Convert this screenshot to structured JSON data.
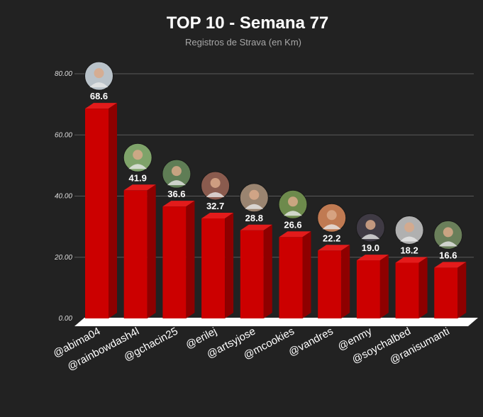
{
  "chart_data": {
    "type": "bar",
    "title": "TOP 10 - Semana 77",
    "subtitle": "Registros de Strava (en Km)",
    "xlabel": "",
    "ylabel": "",
    "categories": [
      "@abima04",
      "@rainbowdash4l",
      "@gchacin25",
      "@erilej",
      "@artsyjose",
      "@mcookies",
      "@vandres",
      "@enmy",
      "@soychalbed",
      "@ranisumanti"
    ],
    "values": [
      68.6,
      41.9,
      36.6,
      32.7,
      28.8,
      26.6,
      22.2,
      19.0,
      18.2,
      16.6
    ],
    "value_labels": [
      "68.6",
      "41.9",
      "36.6",
      "32.7",
      "28.8",
      "26.6",
      "22.2",
      "19.0",
      "18.2",
      "16.6"
    ],
    "ylim": [
      0,
      80
    ],
    "yticks": [
      0,
      20,
      40,
      60,
      80
    ],
    "ytick_labels": [
      "0.00",
      "20.00",
      "40.00",
      "60.00",
      "80.00"
    ],
    "grid": true,
    "legend": "none",
    "style": "3d-column",
    "colors": {
      "background": "#222222",
      "bar_front": "#cc0000",
      "bar_top": "#e31b1b",
      "bar_side": "#8e0000",
      "grid": "#5a5a5a",
      "floor": "#ffffff"
    }
  }
}
